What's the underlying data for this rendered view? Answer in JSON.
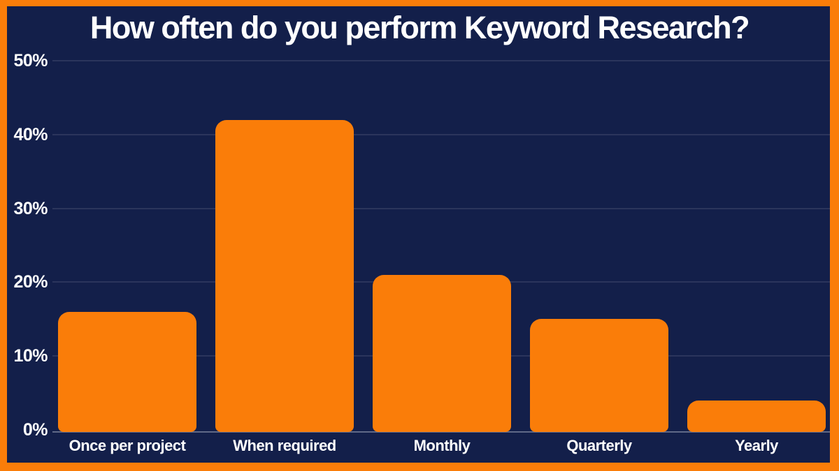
{
  "window": {
    "border_color": "#FA7D09",
    "canvas_color": "#131F4A"
  },
  "chart_data": {
    "type": "bar",
    "title": "How often do you perform Keyword Research?",
    "categories": [
      "Once per project",
      "When required",
      "Monthly",
      "Quarterly",
      "Yearly"
    ],
    "values": [
      16,
      42,
      21,
      15,
      4
    ],
    "value_unit": "%",
    "xlabel": "",
    "ylabel": "",
    "ylim": [
      0,
      50
    ],
    "yticks": [
      0,
      10,
      20,
      30,
      40,
      50
    ],
    "ytick_labels": [
      "0%",
      "10%",
      "20%",
      "30%",
      "40%",
      "50%"
    ],
    "grid": "horizontal",
    "legend": "none",
    "bar_color": "#FA7D09",
    "background_color": "#131F4A",
    "text_color": "#FFFFFF",
    "gridline_color": "rgba(255,255,255,0.10)",
    "baseline_color": "rgba(160,165,185,0.55)"
  }
}
